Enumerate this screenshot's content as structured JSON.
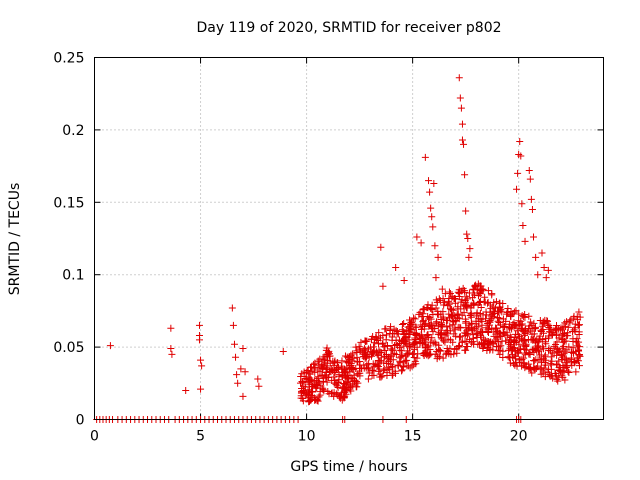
{
  "chart_data": {
    "type": "scatter",
    "title": "Day 119 of 2020, SRMTID for receiver p802",
    "xlabel": "GPS time / hours",
    "ylabel": "SRMTID / TECUs",
    "xlim": [
      0,
      24
    ],
    "ylim": [
      0,
      0.25
    ],
    "xticks": [
      0,
      5,
      10,
      15,
      20
    ],
    "yticks": [
      0,
      0.05,
      0.1,
      0.15,
      0.2,
      0.25
    ],
    "xtick_labels": [
      "0",
      "5",
      "10",
      "15",
      "20"
    ],
    "ytick_labels": [
      "0",
      "0.05",
      "0.1",
      "0.15",
      "0.2",
      "0.25"
    ],
    "grid": true,
    "marker": "plus",
    "color": "#e00000",
    "series": [
      {
        "name": "SRMTID",
        "zero_points": [
          0.1,
          0.25,
          0.4,
          0.55,
          0.7,
          0.85,
          1.1,
          1.3,
          1.5,
          1.7,
          1.9,
          2.1,
          2.3,
          2.5,
          2.7,
          2.9,
          3.1,
          3.3,
          3.5,
          3.8,
          4.0,
          4.2,
          4.4,
          4.6,
          4.8,
          5.0,
          5.2,
          5.4,
          5.6,
          5.8,
          6.0,
          6.2,
          6.4,
          6.6,
          6.8,
          7.0,
          7.2,
          7.4,
          7.6,
          7.8,
          8.0,
          8.2,
          8.4,
          8.6,
          8.8,
          9.0,
          9.2,
          9.4,
          9.6,
          11.7,
          11.8,
          13.6,
          14.7,
          19.9,
          20.0,
          20.1
        ],
        "x": [
          0.75,
          3.6,
          3.6,
          3.65,
          4.3,
          4.95,
          4.95,
          4.95,
          5.0,
          5.0,
          5.05,
          6.5,
          6.55,
          6.6,
          6.65,
          6.7,
          6.75,
          6.9,
          7.0,
          7.0,
          7.1,
          7.7,
          7.75,
          8.9,
          13.5,
          13.6,
          14.2,
          14.6,
          15.2,
          15.4,
          15.6,
          15.75,
          15.8,
          15.85,
          15.9,
          15.95,
          16.0,
          16.05,
          16.1,
          16.2,
          16.4,
          17.2,
          17.25,
          17.3,
          17.35,
          17.35,
          17.4,
          17.45,
          17.5,
          17.55,
          17.6,
          17.65,
          17.7,
          19.9,
          19.95,
          20.0,
          20.05,
          20.1,
          20.15,
          20.2,
          20.3,
          20.5,
          20.55,
          20.6,
          20.65,
          20.7,
          20.8,
          20.9,
          21.1,
          21.2,
          21.3,
          21.4
        ],
        "y": [
          0.051,
          0.063,
          0.049,
          0.045,
          0.02,
          0.065,
          0.058,
          0.055,
          0.041,
          0.021,
          0.037,
          0.077,
          0.065,
          0.052,
          0.043,
          0.031,
          0.025,
          0.035,
          0.049,
          0.016,
          0.033,
          0.028,
          0.023,
          0.047,
          0.119,
          0.092,
          0.105,
          0.096,
          0.126,
          0.122,
          0.181,
          0.165,
          0.157,
          0.146,
          0.14,
          0.133,
          0.163,
          0.12,
          0.098,
          0.112,
          0.09,
          0.236,
          0.222,
          0.215,
          0.204,
          0.193,
          0.19,
          0.169,
          0.144,
          0.128,
          0.125,
          0.112,
          0.118,
          0.159,
          0.17,
          0.183,
          0.192,
          0.182,
          0.149,
          0.134,
          0.123,
          0.172,
          0.166,
          0.152,
          0.145,
          0.126,
          0.112,
          0.1,
          0.115,
          0.105,
          0.098,
          0.103
        ]
      }
    ]
  }
}
